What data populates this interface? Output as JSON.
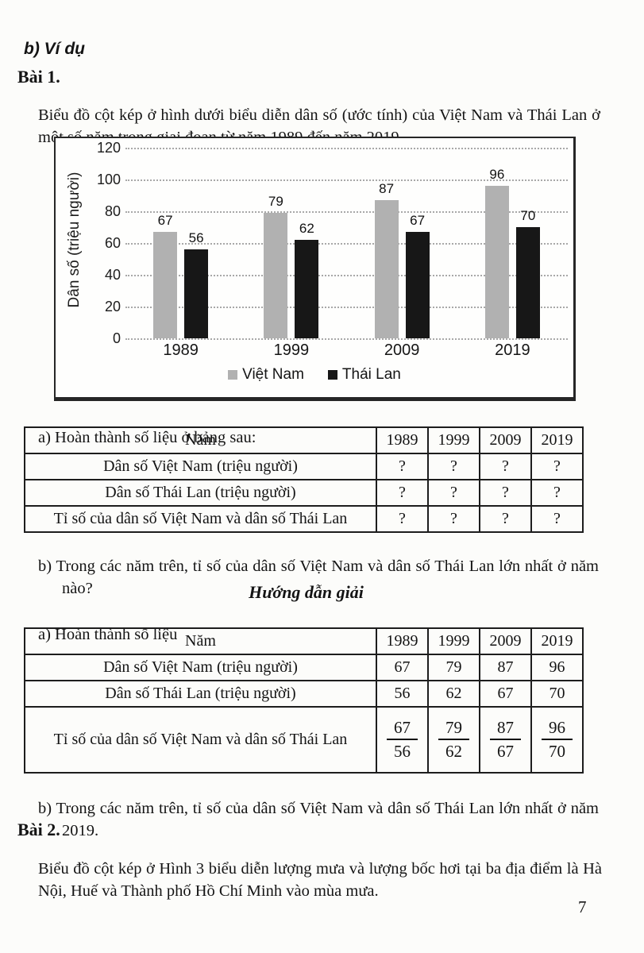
{
  "page_number": "7",
  "headings": {
    "example": "b) Ví dụ",
    "problem1": "Bài 1.",
    "solution": "Hướng dẫn giải",
    "problem2": "Bài 2."
  },
  "problem1": {
    "intro": "Biểu đồ cột kép ở hình dưới biểu diễn dân số (ước tính) của Việt Nam và Thái Lan ở một số năm trong giai đoạn từ năm 1989 đến năm 2019.",
    "part_a": "a) Hoàn thành số liệu ở bảng sau:",
    "part_b": "b) Trong các năm trên, tỉ số của dân số Việt Nam và dân số Thái Lan lớn nhất ở năm nào?"
  },
  "solution": {
    "part_a": "a) Hoàn thành số liệu",
    "part_b": "b) Trong các năm trên, tỉ số của dân số Việt Nam và dân số Thái Lan lớn nhất ở năm 2019."
  },
  "problem2": {
    "intro": "Biểu đồ cột kép ở Hình 3 biểu diễn lượng mưa và lượng bốc hơi tại ba địa điểm là Hà Nội, Huế và Thành phố Hồ Chí Minh vào mùa mưa."
  },
  "chart_data": {
    "type": "bar",
    "title": "",
    "categories": [
      "1989",
      "1999",
      "2009",
      "2019"
    ],
    "series": [
      {
        "name": "Việt Nam",
        "values": [
          67,
          79,
          87,
          96
        ],
        "color": "#b1b1b1"
      },
      {
        "name": "Thái Lan",
        "values": [
          56,
          62,
          67,
          70
        ],
        "color": "#171717"
      }
    ],
    "xlabel": "",
    "ylabel": "Dân số (triệu người)",
    "yticks": [
      0,
      20,
      40,
      60,
      80,
      100,
      120
    ],
    "ylim": [
      0,
      120
    ],
    "grid": "horizontal-dotted",
    "legend_position": "bottom"
  },
  "question_table": {
    "header": [
      "Năm",
      "1989",
      "1999",
      "2009",
      "2019"
    ],
    "rows": [
      {
        "label": "Dân số Việt Nam (triệu người)",
        "values": [
          "?",
          "?",
          "?",
          "?"
        ]
      },
      {
        "label": "Dân số Thái Lan (triệu người)",
        "values": [
          "?",
          "?",
          "?",
          "?"
        ]
      },
      {
        "label": "Tỉ số của dân số Việt Nam và dân số Thái Lan",
        "values": [
          "?",
          "?",
          "?",
          "?"
        ]
      }
    ]
  },
  "solution_table": {
    "header": [
      "Năm",
      "1989",
      "1999",
      "2009",
      "2019"
    ],
    "rows": [
      {
        "label": "Dân số Việt Nam (triệu người)",
        "values": [
          "67",
          "79",
          "87",
          "96"
        ]
      },
      {
        "label": "Dân số Thái Lan (triệu người)",
        "values": [
          "56",
          "62",
          "67",
          "70"
        ]
      },
      {
        "label": "Tỉ số của dân số Việt Nam và dân số Thái Lan",
        "fractions": [
          [
            "67",
            "56"
          ],
          [
            "79",
            "62"
          ],
          [
            "87",
            "67"
          ],
          [
            "96",
            "70"
          ]
        ]
      }
    ]
  }
}
